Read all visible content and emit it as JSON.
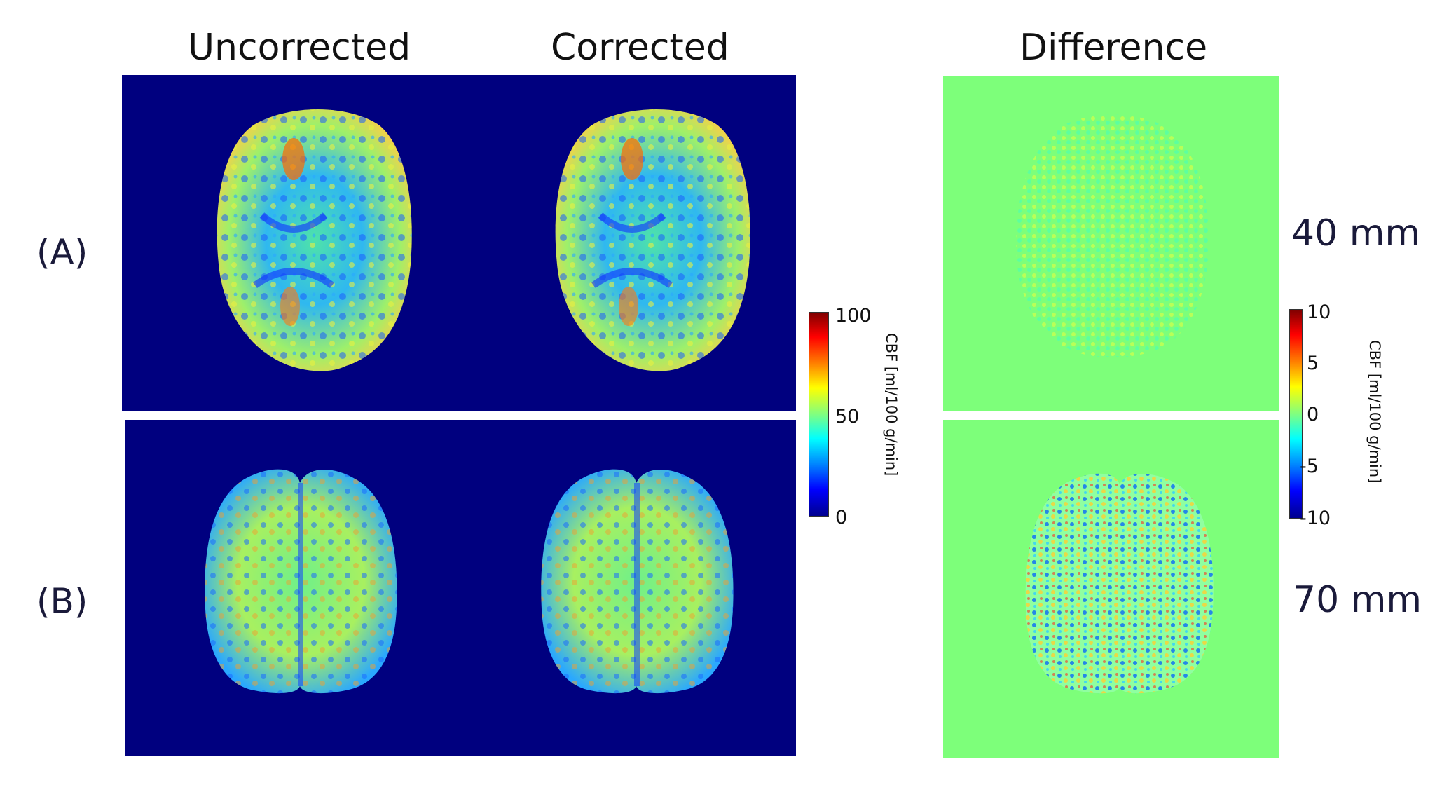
{
  "columns": {
    "uncorrected": "Uncorrected",
    "corrected": "Corrected",
    "difference": "Difference"
  },
  "rows": [
    {
      "label": "(A)",
      "depth": "40 mm"
    },
    {
      "label": "(B)",
      "depth": "70 mm"
    }
  ],
  "colorbar_cbf": {
    "title": "CBF [ml/100 g/min]",
    "ticks": [
      "100",
      "50",
      "0"
    ]
  },
  "colorbar_diff": {
    "title": "CBF [ml/100 g/min]",
    "ticks": [
      "10",
      "5",
      "0",
      "-5",
      "-10"
    ]
  },
  "colors": {
    "background_map": "#00007f",
    "difference_background": "#7dff7a",
    "separator": "#ffffff"
  }
}
